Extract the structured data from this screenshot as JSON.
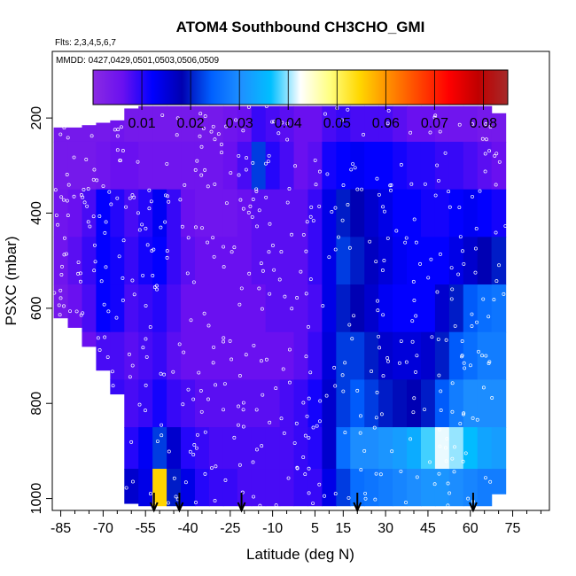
{
  "chart_data": {
    "type": "heatmap",
    "title": "ATOM4 Southbound CH3CHO_GMI",
    "note_flights": "Flts: 2,3,4,5,6,7",
    "note_dates": "MMDD: 0427,0429,0501,0503,0506,0509",
    "xlabel": "Latitude (deg N)",
    "ylabel": "PSXC (mbar)",
    "xlim": [
      -88,
      88
    ],
    "ylim": [
      1025,
      60
    ],
    "x_ticks": [
      -85,
      -70,
      -55,
      -40,
      -25,
      -10,
      5,
      15,
      30,
      45,
      60,
      75
    ],
    "y_ticks": [
      200,
      400,
      600,
      800,
      1000
    ],
    "colorbar": {
      "ticks": [
        0.01,
        0.02,
        0.03,
        0.04,
        0.05,
        0.06,
        0.07,
        0.08
      ],
      "range": [
        0.0,
        0.085
      ],
      "colors": [
        "#8a2be2",
        "#6a10f0",
        "#0000ff",
        "#0000b0",
        "#0060ff",
        "#1e90ff",
        "#00bfff",
        "#ffffff",
        "#ffff80",
        "#ffd700",
        "#ff8c00",
        "#ff4500",
        "#ff0000",
        "#c00000",
        "#a52a2a"
      ]
    },
    "latitude_bins": [
      -85,
      -80,
      -75,
      -70,
      -65,
      -60,
      -55,
      -50,
      -45,
      -40,
      -35,
      -30,
      -25,
      -20,
      -15,
      -10,
      -5,
      0,
      5,
      10,
      15,
      20,
      25,
      30,
      35,
      40,
      45,
      50,
      55,
      60,
      65,
      70
    ],
    "pressure_levels": [
      200,
      300,
      400,
      500,
      600,
      700,
      800,
      900,
      975
    ],
    "values": [
      [
        0.004,
        0.004,
        0.004,
        0.004,
        0.005,
        0.004,
        0.004,
        0.004,
        0.004,
        0.004,
        0.004,
        0.004,
        0.005,
        0.006,
        0.009,
        0.008,
        0.007,
        0.006,
        0.006,
        0.008,
        0.009,
        0.008,
        0.008,
        0.008,
        0.007,
        0.006,
        0.006,
        0.005,
        0.005,
        0.005,
        0.004,
        0.004
      ],
      [
        0.004,
        0.004,
        0.004,
        0.005,
        0.006,
        0.006,
        0.005,
        0.005,
        0.005,
        0.005,
        0.005,
        0.005,
        0.006,
        0.008,
        0.022,
        0.01,
        0.008,
        0.006,
        0.007,
        0.011,
        0.012,
        0.013,
        0.012,
        0.012,
        0.011,
        0.01,
        0.01,
        0.009,
        0.009,
        0.008,
        0.007,
        0.006
      ],
      [
        0.005,
        0.006,
        0.008,
        0.012,
        0.01,
        0.008,
        0.01,
        0.013,
        0.009,
        0.006,
        0.005,
        0.005,
        0.005,
        0.006,
        0.007,
        0.007,
        0.007,
        0.007,
        0.009,
        0.014,
        0.02,
        0.018,
        0.016,
        0.014,
        0.012,
        0.012,
        0.011,
        0.011,
        0.012,
        0.013,
        0.012,
        0.011
      ],
      [
        0.005,
        0.007,
        0.009,
        0.012,
        0.011,
        0.009,
        0.011,
        0.012,
        0.009,
        0.007,
        0.006,
        0.006,
        0.006,
        0.006,
        0.007,
        0.007,
        0.007,
        0.007,
        0.009,
        0.014,
        0.022,
        0.02,
        0.017,
        0.015,
        0.013,
        0.012,
        0.012,
        0.012,
        0.014,
        0.016,
        0.018,
        0.02
      ],
      [
        0.004,
        0.006,
        0.008,
        0.012,
        0.011,
        0.008,
        0.009,
        0.01,
        0.008,
        0.006,
        0.006,
        0.006,
        0.006,
        0.006,
        0.006,
        0.007,
        0.007,
        0.007,
        0.008,
        0.014,
        0.02,
        0.018,
        0.016,
        0.013,
        0.012,
        0.012,
        0.012,
        0.016,
        0.02,
        0.024,
        0.026,
        0.027
      ],
      [
        0.004,
        0.005,
        0.006,
        0.008,
        0.008,
        0.007,
        0.008,
        0.009,
        0.007,
        0.006,
        0.006,
        0.006,
        0.006,
        0.006,
        0.006,
        0.006,
        0.006,
        0.007,
        0.009,
        0.015,
        0.022,
        0.022,
        0.02,
        0.016,
        0.015,
        0.015,
        0.016,
        0.02,
        0.024,
        0.026,
        0.028,
        0.028
      ],
      [
        0.005,
        0.006,
        0.007,
        0.009,
        0.009,
        0.008,
        0.009,
        0.011,
        0.009,
        0.008,
        0.007,
        0.007,
        0.007,
        0.007,
        0.007,
        0.007,
        0.008,
        0.009,
        0.011,
        0.016,
        0.022,
        0.024,
        0.022,
        0.02,
        0.019,
        0.018,
        0.02,
        0.024,
        0.028,
        0.03,
        0.03,
        0.03
      ],
      [
        0.006,
        0.007,
        0.008,
        0.009,
        0.01,
        0.01,
        0.013,
        0.022,
        0.016,
        0.01,
        0.009,
        0.008,
        0.008,
        0.008,
        0.008,
        0.008,
        0.008,
        0.009,
        0.01,
        0.016,
        0.026,
        0.03,
        0.03,
        0.031,
        0.032,
        0.034,
        0.038,
        0.042,
        0.04,
        0.036,
        0.033,
        0.032
      ],
      [
        0.006,
        0.007,
        0.008,
        0.009,
        0.012,
        0.016,
        0.014,
        0.055,
        0.02,
        0.014,
        0.01,
        0.009,
        0.009,
        0.008,
        0.008,
        0.008,
        0.008,
        0.009,
        0.009,
        0.014,
        0.022,
        0.026,
        0.027,
        0.028,
        0.029,
        0.03,
        0.031,
        0.031,
        0.03,
        0.029,
        0.028,
        0.028
      ]
    ],
    "coverage_top_mbar": [
      220,
      220,
      215,
      210,
      205,
      180,
      175,
      175,
      175,
      175,
      175,
      175,
      175,
      175,
      175,
      175,
      175,
      175,
      175,
      175,
      175,
      175,
      175,
      175,
      175,
      175,
      175,
      175,
      175,
      175,
      175,
      190
    ],
    "coverage_bottom_mbar": [
      620,
      640,
      680,
      730,
      780,
      1010,
      1015,
      1015,
      1015,
      1015,
      1015,
      1015,
      1015,
      1015,
      1015,
      1015,
      1015,
      1015,
      1015,
      1015,
      1015,
      1015,
      1015,
      1015,
      1015,
      1015,
      1015,
      1015,
      1015,
      1015,
      1015,
      990
    ],
    "arrow_latitudes": [
      -52,
      -43,
      -21,
      20,
      61
    ]
  }
}
